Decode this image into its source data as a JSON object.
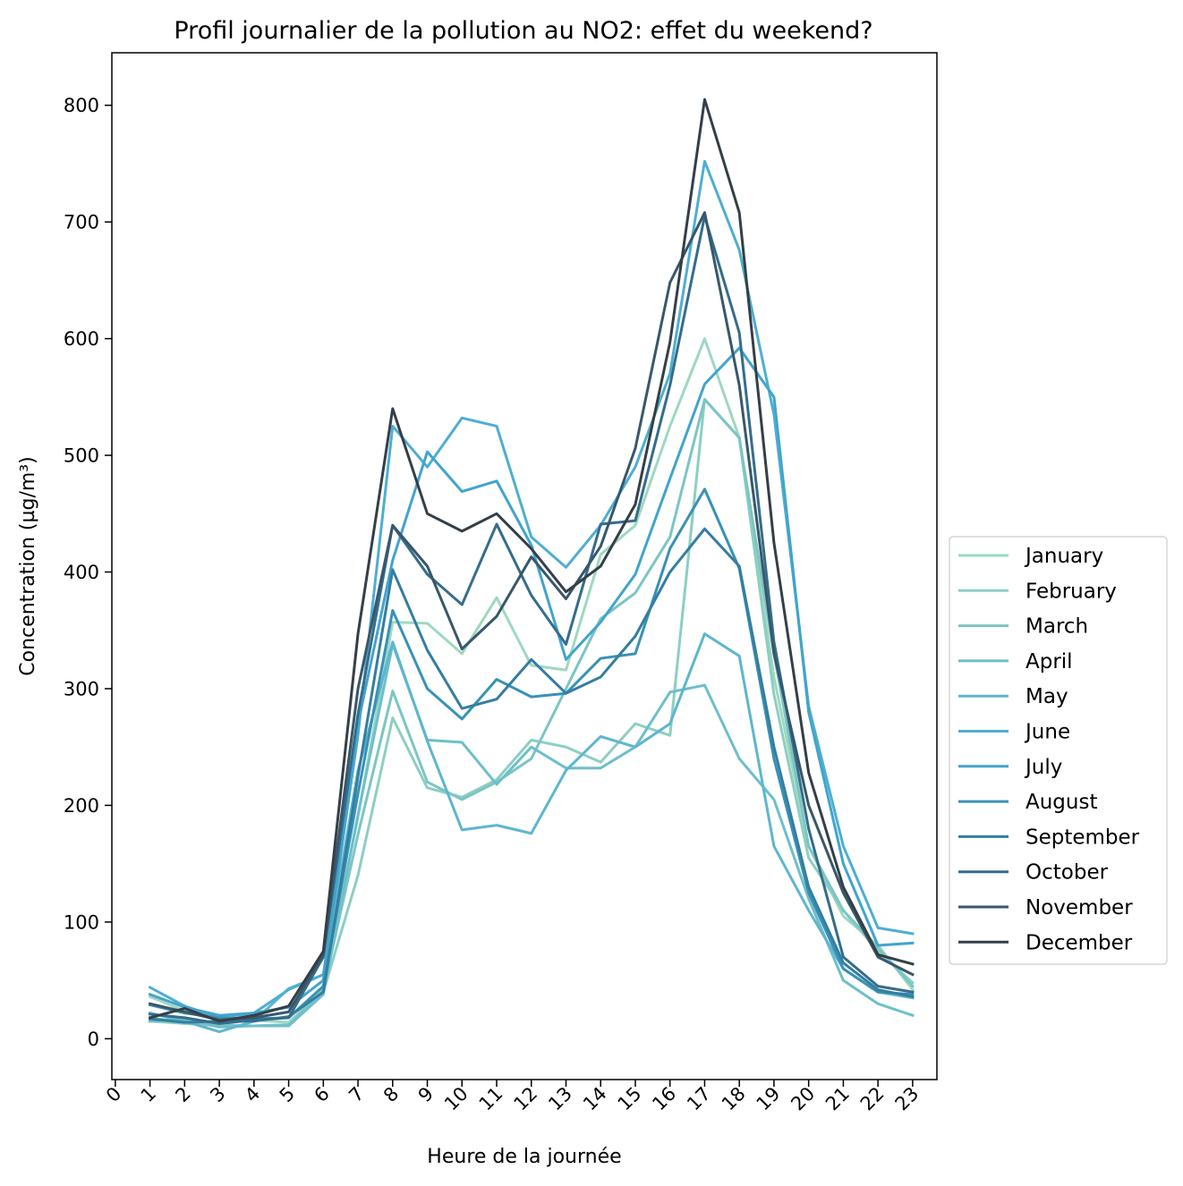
{
  "chart_data": {
    "type": "line",
    "title": "Profil journalier de la pollution au NO2: effet du weekend?",
    "xlabel": "Heure de la journée",
    "ylabel": "Concentration (µg/m³)",
    "xlim": [
      -0.1,
      23.7
    ],
    "ylim": [
      -35,
      845
    ],
    "xticks": [
      0,
      1,
      2,
      3,
      4,
      5,
      6,
      7,
      8,
      9,
      10,
      11,
      12,
      13,
      14,
      15,
      16,
      17,
      18,
      19,
      20,
      21,
      22,
      23
    ],
    "yticks": [
      0,
      100,
      200,
      300,
      400,
      500,
      600,
      700,
      800
    ],
    "grid": false,
    "legend_position": "center-right-outside",
    "x": [
      1,
      2,
      3,
      4,
      5,
      6,
      7,
      8,
      9,
      10,
      11,
      12,
      13,
      14,
      15,
      16,
      17,
      18,
      19,
      20,
      21,
      22,
      23
    ],
    "series": [
      {
        "name": "January",
        "color": "#9fd8c0",
        "values": [
          36,
          24,
          18,
          16,
          14,
          42,
          190,
          357,
          356,
          330,
          378,
          320,
          316,
          415,
          440,
          525,
          600,
          515,
          310,
          165,
          105,
          80,
          42
        ]
      },
      {
        "name": "February",
        "color": "#8ccfc2",
        "values": [
          15,
          13,
          11,
          11,
          12,
          40,
          140,
          275,
          215,
          207,
          222,
          256,
          250,
          237,
          270,
          260,
          548,
          515,
          295,
          155,
          110,
          75,
          48
        ]
      },
      {
        "name": "March",
        "color": "#7cc5c4",
        "values": [
          18,
          14,
          12,
          11,
          12,
          42,
          175,
          298,
          220,
          205,
          220,
          240,
          300,
          360,
          382,
          430,
          548,
          515,
          330,
          165,
          110,
          78,
          45
        ]
      },
      {
        "name": "April",
        "color": "#6dbfca",
        "values": [
          15,
          17,
          10,
          11,
          11,
          38,
          192,
          338,
          256,
          254,
          218,
          250,
          232,
          232,
          250,
          297,
          303,
          240,
          205,
          120,
          50,
          30,
          20
        ]
      },
      {
        "name": "May",
        "color": "#5eb6cf",
        "values": [
          22,
          15,
          6,
          15,
          43,
          55,
          230,
          340,
          255,
          179,
          183,
          176,
          230,
          259,
          250,
          270,
          347,
          328,
          165,
          110,
          60,
          40,
          35
        ]
      },
      {
        "name": "June",
        "color": "#4eaed2",
        "values": [
          44,
          28,
          18,
          22,
          42,
          55,
          260,
          525,
          490,
          532,
          525,
          430,
          404,
          440,
          490,
          570,
          752,
          676,
          535,
          285,
          165,
          95,
          90
        ]
      },
      {
        "name": "July",
        "color": "#42a4cc",
        "values": [
          38,
          27,
          20,
          22,
          27,
          50,
          270,
          410,
          503,
          469,
          478,
          423,
          325,
          357,
          398,
          480,
          561,
          592,
          550,
          280,
          150,
          80,
          82
        ]
      },
      {
        "name": "August",
        "color": "#3891b7",
        "values": [
          29,
          22,
          18,
          17,
          18,
          45,
          210,
          367,
          300,
          274,
          308,
          293,
          296,
          326,
          330,
          420,
          471,
          403,
          240,
          125,
          60,
          40,
          38
        ]
      },
      {
        "name": "September",
        "color": "#347ea0",
        "values": [
          17,
          14,
          15,
          15,
          19,
          40,
          225,
          402,
          333,
          283,
          291,
          325,
          296,
          310,
          345,
          400,
          437,
          405,
          250,
          130,
          65,
          42,
          36
        ]
      },
      {
        "name": "October",
        "color": "#356d8b",
        "values": [
          21,
          18,
          13,
          16,
          18,
          70,
          278,
          440,
          398,
          372,
          441,
          380,
          338,
          441,
          444,
          560,
          705,
          605,
          340,
          180,
          70,
          45,
          40
        ]
      },
      {
        "name": "November",
        "color": "#38576b",
        "values": [
          30,
          23,
          16,
          18,
          23,
          72,
          300,
          440,
          405,
          334,
          362,
          413,
          377,
          422,
          506,
          648,
          708,
          560,
          330,
          200,
          125,
          70,
          55
        ]
      },
      {
        "name": "December",
        "color": "#343f47",
        "values": [
          18,
          26,
          15,
          20,
          28,
          75,
          347,
          540,
          450,
          435,
          450,
          420,
          383,
          405,
          458,
          597,
          805,
          708,
          425,
          228,
          130,
          72,
          64
        ]
      }
    ]
  }
}
